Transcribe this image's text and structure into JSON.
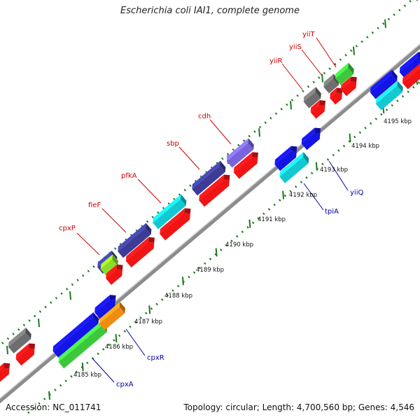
{
  "title": "Escherichia coli IAI1, complete genome",
  "footer": {
    "accession": "Accession: NC_011741",
    "summary": "Topology: circular; Length: 4,700,560 bp; Genes: 4,546"
  },
  "kbp_ticks": [
    "4185 kbp",
    "4186 kbp",
    "4187 kbp",
    "4188 kbp",
    "4189 kbp",
    "4190 kbp",
    "4191 kbp",
    "4192 kbp",
    "4193 kbp",
    "4194 kbp",
    "4195 kbp"
  ],
  "top_gene_labels": [
    "cpxP",
    "fieF",
    "pfkA",
    "sbp",
    "cdh",
    "yiiR",
    "yiiS",
    "yiiT"
  ],
  "bottom_gene_labels": [
    "cpxR",
    "cpxA",
    "tpiA",
    "yiiQ"
  ],
  "colors": {
    "blue": "#1414e6",
    "red": "#f01414",
    "green": "#3cc83c",
    "cyan": "#14c8d2",
    "gray": "#6e6e6e",
    "navy": "#3c3c96",
    "lavender": "#7864dc",
    "orange": "#f08c14",
    "lime": "#8cdc28",
    "label_red": "#cc0000",
    "label_blue": "#0000aa",
    "dots": "#1e7a1e"
  }
}
